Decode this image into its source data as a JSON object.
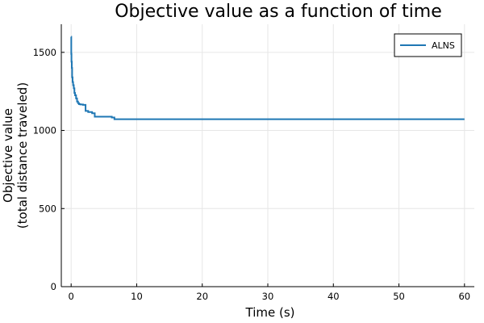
{
  "chart_data": {
    "type": "line",
    "title": "Objective value as a function of time",
    "xlabel": "Time (s)",
    "ylabel_lines": [
      "Objective value",
      "(total distance traveled)"
    ],
    "xlim": [
      -1.5,
      61.5
    ],
    "ylim": [
      0,
      1680
    ],
    "xticks": [
      0,
      10,
      20,
      30,
      40,
      50,
      60
    ],
    "yticks": [
      0,
      500,
      1000,
      1500
    ],
    "xtick_labels": [
      "0",
      "10",
      "20",
      "30",
      "40",
      "50",
      "60"
    ],
    "ytick_labels": [
      "0",
      "500",
      "1000",
      "1500"
    ],
    "grid": true,
    "legend_position": "top-right",
    "series": [
      {
        "name": "ALNS",
        "color": "#1f77b4",
        "x": [
          0.0,
          0.02,
          0.02,
          0.05,
          0.05,
          0.1,
          0.1,
          0.15,
          0.15,
          0.22,
          0.22,
          0.3,
          0.3,
          0.4,
          0.4,
          0.5,
          0.5,
          0.6,
          0.6,
          0.75,
          0.75,
          0.9,
          0.9,
          1.05,
          1.05,
          1.2,
          1.2,
          1.4,
          1.4,
          1.8,
          1.8,
          2.2,
          2.2,
          2.6,
          2.6,
          3.2,
          3.2,
          3.6,
          3.6,
          6.2,
          6.2,
          6.6,
          6.6,
          60.0
        ],
        "y": [
          1600,
          1600,
          1490,
          1490,
          1440,
          1440,
          1400,
          1400,
          1340,
          1340,
          1310,
          1310,
          1290,
          1290,
          1270,
          1270,
          1240,
          1240,
          1225,
          1225,
          1205,
          1205,
          1185,
          1185,
          1175,
          1175,
          1168,
          1168,
          1166,
          1166,
          1164,
          1164,
          1125,
          1125,
          1118,
          1118,
          1110,
          1110,
          1088,
          1088,
          1083,
          1083,
          1072,
          1072
        ]
      }
    ]
  }
}
